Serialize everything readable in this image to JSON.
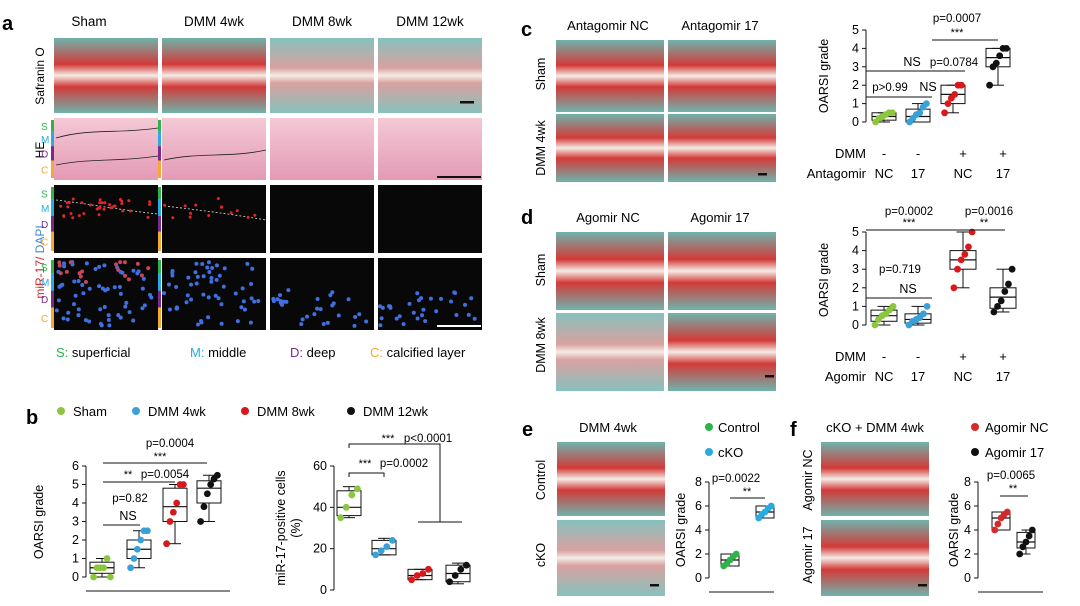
{
  "panel_letters": [
    "a",
    "b",
    "c",
    "d",
    "e",
    "f"
  ],
  "colors": {
    "sham": "#8cc63f",
    "dmm4": "#3aa0d8",
    "dmm8": "#d7191c",
    "dmm12": "#111111",
    "green": "#2db34a",
    "cyan": "#29abe2",
    "purple": "#7b2a8c",
    "orange": "#f7a832",
    "red": "#d42a2a",
    "blue": "#3e88d0",
    "safranin_red": "#c8232b",
    "fast_green": "#7ab8b4",
    "he_pink": "#e7a7bf",
    "dark_field": "#080808"
  },
  "panel_a": {
    "columns": [
      "Sham",
      "DMM 4wk",
      "DMM 8wk",
      "DMM 12wk"
    ],
    "row_labels": [
      "Safranin O",
      "HE"
    ],
    "row3_label_red": "miR-17/",
    "row3_label_blue": " DAPI",
    "zone_letters": [
      "S",
      "M",
      "D",
      "C"
    ],
    "legend": [
      {
        "letter": "S:",
        "text": " superficial"
      },
      {
        "letter": "M:",
        "text": " middle"
      },
      {
        "letter": "D:",
        "text": " deep"
      },
      {
        "letter": "C:",
        "text": " calcified layer"
      }
    ]
  },
  "panel_b": {
    "legend": [
      "Sham",
      "DMM 4wk",
      "DMM 8wk",
      "DMM 12wk"
    ],
    "stats_left": [
      "p=0.0004",
      "***",
      "**",
      "p=0.0054",
      "p=0.82",
      "NS"
    ],
    "stats_right": [
      "***",
      "p<0.0001",
      "***",
      "p=0.0002"
    ],
    "yticks_right": [
      "0",
      "20",
      "40",
      "60"
    ]
  },
  "panel_c": {
    "columns": [
      "Antagomir NC",
      "Antagomir 17"
    ],
    "rows": [
      "Sham",
      "DMM 4wk"
    ],
    "stats": [
      "p=0.0007",
      "***",
      "NS",
      "p=0.0784",
      "p>0.99",
      "NS"
    ],
    "factor_rows": [
      {
        "label": "DMM",
        "values": [
          "-",
          "-",
          "+",
          "+"
        ]
      },
      {
        "label": "Antagomir",
        "values": [
          "NC",
          "17",
          "NC",
          "17"
        ]
      }
    ]
  },
  "panel_d": {
    "columns": [
      "Agomir NC",
      "Agomir 17"
    ],
    "rows": [
      "Sham",
      "DMM 8wk"
    ],
    "stats": [
      "p=0.0002",
      "***",
      "p=0.0016",
      "**",
      "p=0.719",
      "NS"
    ],
    "factor_rows": [
      {
        "label": "DMM",
        "values": [
          "-",
          "-",
          "+",
          "+"
        ]
      },
      {
        "label": "Agomir",
        "values": [
          "NC",
          "17",
          "NC",
          "17"
        ]
      }
    ]
  },
  "panel_e": {
    "title": "DMM 4wk",
    "rows": [
      "Control",
      "cKO"
    ],
    "legend": [
      "Control",
      "cKO"
    ],
    "stats": [
      "p=0.0022",
      "**"
    ]
  },
  "panel_f": {
    "title": "cKO + DMM 4wk",
    "rows": [
      "Agomir NC",
      "Agomir 17"
    ],
    "legend": [
      "Agomir NC",
      "Agomir 17"
    ],
    "stats": [
      "p=0.0065",
      "**"
    ]
  },
  "chart_data": [
    {
      "id": "b_left",
      "type": "box",
      "ylabel": "OARSI grade",
      "ylim": [
        0,
        6
      ],
      "yticks": [
        0,
        1,
        2,
        3,
        4,
        5,
        6
      ],
      "groups": [
        {
          "name": "Sham",
          "color": "#8cc63f",
          "min": 0,
          "q1": 0.2,
          "median": 0.5,
          "q3": 0.8,
          "max": 1,
          "points": [
            0,
            0.5,
            0.5,
            0.5,
            1,
            0
          ]
        },
        {
          "name": "DMM 4wk",
          "color": "#3aa0d8",
          "min": 0.5,
          "q1": 1,
          "median": 1.5,
          "q3": 2,
          "max": 2.5,
          "points": [
            0.5,
            1,
            1.5,
            2,
            2.5,
            2.5
          ]
        },
        {
          "name": "DMM 8wk",
          "color": "#d7191c",
          "min": 1.8,
          "q1": 3,
          "median": 3.8,
          "q3": 4.8,
          "max": 5,
          "points": [
            1.8,
            3,
            3.5,
            4,
            5,
            5
          ]
        },
        {
          "name": "DMM 12wk",
          "color": "#111111",
          "min": 3,
          "q1": 4,
          "median": 4.8,
          "q3": 5.2,
          "max": 5.5,
          "points": [
            3,
            3.8,
            4.5,
            5,
            5.3,
            5.5
          ]
        }
      ]
    },
    {
      "id": "b_right",
      "type": "box",
      "ylabel": "miR-17-positive cells",
      "ylabel2": "(%)",
      "ylim": [
        0,
        60
      ],
      "yticks": [
        0,
        20,
        40,
        60
      ],
      "groups": [
        {
          "name": "Sham",
          "color": "#8cc63f",
          "min": 35,
          "q1": 36,
          "median": 40,
          "q3": 48,
          "max": 50,
          "points": [
            35,
            40,
            46,
            49
          ]
        },
        {
          "name": "DMM 4wk",
          "color": "#3aa0d8",
          "min": 17,
          "q1": 17,
          "median": 20,
          "q3": 24,
          "max": 25,
          "points": [
            17,
            19,
            21,
            24
          ]
        },
        {
          "name": "DMM 8wk",
          "color": "#d7191c",
          "min": 5,
          "q1": 5,
          "median": 7,
          "q3": 10,
          "max": 10,
          "points": [
            5,
            7,
            8,
            10
          ]
        },
        {
          "name": "DMM 12wk",
          "color": "#111111",
          "min": 3,
          "q1": 4,
          "median": 8,
          "q3": 12,
          "max": 13,
          "points": [
            4,
            7,
            10,
            12
          ]
        }
      ]
    },
    {
      "id": "c",
      "type": "box",
      "ylabel": "OARSI  grade",
      "ylim": [
        0,
        5
      ],
      "yticks": [
        0,
        1,
        2,
        3,
        4,
        5
      ],
      "groups": [
        {
          "name": "DMM - / NC",
          "color": "#8cc63f",
          "min": 0,
          "q1": 0.1,
          "median": 0.3,
          "q3": 0.5,
          "max": 0.5,
          "points": [
            0,
            0.2,
            0.3,
            0.4,
            0.5,
            0.5
          ]
        },
        {
          "name": "DMM - / 17",
          "color": "#3aa0d8",
          "min": 0,
          "q1": 0,
          "median": 0.3,
          "q3": 0.7,
          "max": 1,
          "points": [
            0,
            0.2,
            0.4,
            0.5,
            0.8,
            1
          ]
        },
        {
          "name": "DMM + / NC",
          "color": "#d7191c",
          "min": 0.5,
          "q1": 1,
          "median": 1.5,
          "q3": 2,
          "max": 2,
          "points": [
            0.5,
            1,
            1.3,
            1.5,
            2,
            2
          ]
        },
        {
          "name": "DMM + / 17",
          "color": "#111111",
          "min": 2,
          "q1": 3,
          "median": 3.5,
          "q3": 4,
          "max": 4,
          "points": [
            2,
            3,
            3.2,
            3.6,
            4,
            4
          ]
        }
      ]
    },
    {
      "id": "d",
      "type": "box",
      "ylabel": "OARSI  grade",
      "ylim": [
        0,
        5
      ],
      "yticks": [
        0,
        1,
        2,
        3,
        4,
        5
      ],
      "groups": [
        {
          "name": "DMM - / NC",
          "color": "#8cc63f",
          "min": 0,
          "q1": 0.2,
          "median": 0.5,
          "q3": 0.8,
          "max": 1,
          "points": [
            0,
            0.3,
            0.5,
            0.6,
            0.8,
            1
          ]
        },
        {
          "name": "DMM - / 17",
          "color": "#3aa0d8",
          "min": 0,
          "q1": 0.1,
          "median": 0.3,
          "q3": 0.6,
          "max": 1,
          "points": [
            0,
            0.2,
            0.3,
            0.4,
            0.6,
            1
          ]
        },
        {
          "name": "DMM + / NC",
          "color": "#d7191c",
          "min": 2,
          "q1": 3,
          "median": 3.5,
          "q3": 4,
          "max": 5,
          "points": [
            2,
            3,
            3.5,
            3.8,
            4.2,
            5
          ]
        },
        {
          "name": "DMM + / 17",
          "color": "#111111",
          "min": 0.7,
          "q1": 0.9,
          "median": 1.5,
          "q3": 2,
          "max": 3,
          "points": [
            0.7,
            1,
            1.3,
            1.8,
            2.2,
            3
          ]
        }
      ]
    },
    {
      "id": "e",
      "type": "box",
      "ylabel": "OARSI  grade",
      "ylim": [
        0,
        8
      ],
      "yticks": [
        0,
        2,
        4,
        6,
        8
      ],
      "groups": [
        {
          "name": "Control",
          "color": "#2db34a",
          "min": 1,
          "q1": 1,
          "median": 1.5,
          "q3": 2,
          "max": 2,
          "points": [
            1,
            1.2,
            1.5,
            1.8,
            2
          ]
        },
        {
          "name": "cKO",
          "color": "#29abe2",
          "min": 5,
          "q1": 5,
          "median": 5.5,
          "q3": 6,
          "max": 6,
          "points": [
            5,
            5.3,
            5.5,
            5.8,
            6
          ]
        }
      ]
    },
    {
      "id": "f",
      "type": "box",
      "ylabel": "OARSI  grade",
      "ylim": [
        0,
        8
      ],
      "yticks": [
        0,
        2,
        4,
        6,
        8
      ],
      "groups": [
        {
          "name": "Agomir NC",
          "color": "#d42a2a",
          "min": 4,
          "q1": 4,
          "median": 5,
          "q3": 5.5,
          "max": 5.5,
          "points": [
            4,
            4.5,
            5,
            5.3,
            5.5
          ]
        },
        {
          "name": "Agomir 17",
          "color": "#111111",
          "min": 2,
          "q1": 2.5,
          "median": 3,
          "q3": 3.8,
          "max": 4,
          "points": [
            2,
            2.6,
            3,
            3.5,
            4
          ]
        }
      ]
    }
  ]
}
